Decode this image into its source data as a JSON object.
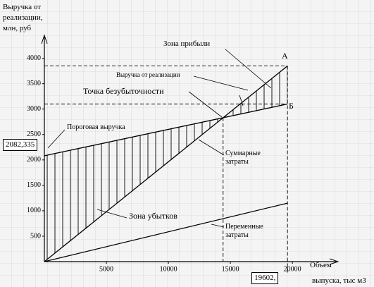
{
  "chart_data": {
    "type": "line",
    "y_title_lines": [
      "Выручка от",
      "реализации,",
      "млн, руб"
    ],
    "x_title_lines": [
      "Объем",
      "выпуска, тыс м3"
    ],
    "x": [
      0,
      19602
    ],
    "series": [
      {
        "name": "Выручка от реализации",
        "color": "#000000",
        "values": [
          0,
          3850
        ]
      },
      {
        "name": "Суммарные затраты",
        "color": "#000000",
        "values": [
          2082.335,
          3100
        ]
      },
      {
        "name": "Переменные затраты",
        "color": "#000000",
        "values": [
          0,
          1150
        ]
      }
    ],
    "xlim": [
      0,
      23000
    ],
    "ylim": [
      0,
      4300
    ],
    "xticks": [
      5000,
      10000,
      15000,
      20000
    ],
    "yticks": [
      500,
      1000,
      1500,
      2000,
      2500,
      3000,
      3500,
      4000
    ],
    "ymarker": {
      "value": 2082.335,
      "label": "2082,335"
    },
    "xmarker": {
      "value": 19602,
      "label": "19602,"
    },
    "point_labels": [
      "А",
      "Б"
    ],
    "annotations": [
      "Зона прибыли",
      "Точка безубыточности",
      "Пороговая выручка",
      "Зона убытков"
    ]
  }
}
